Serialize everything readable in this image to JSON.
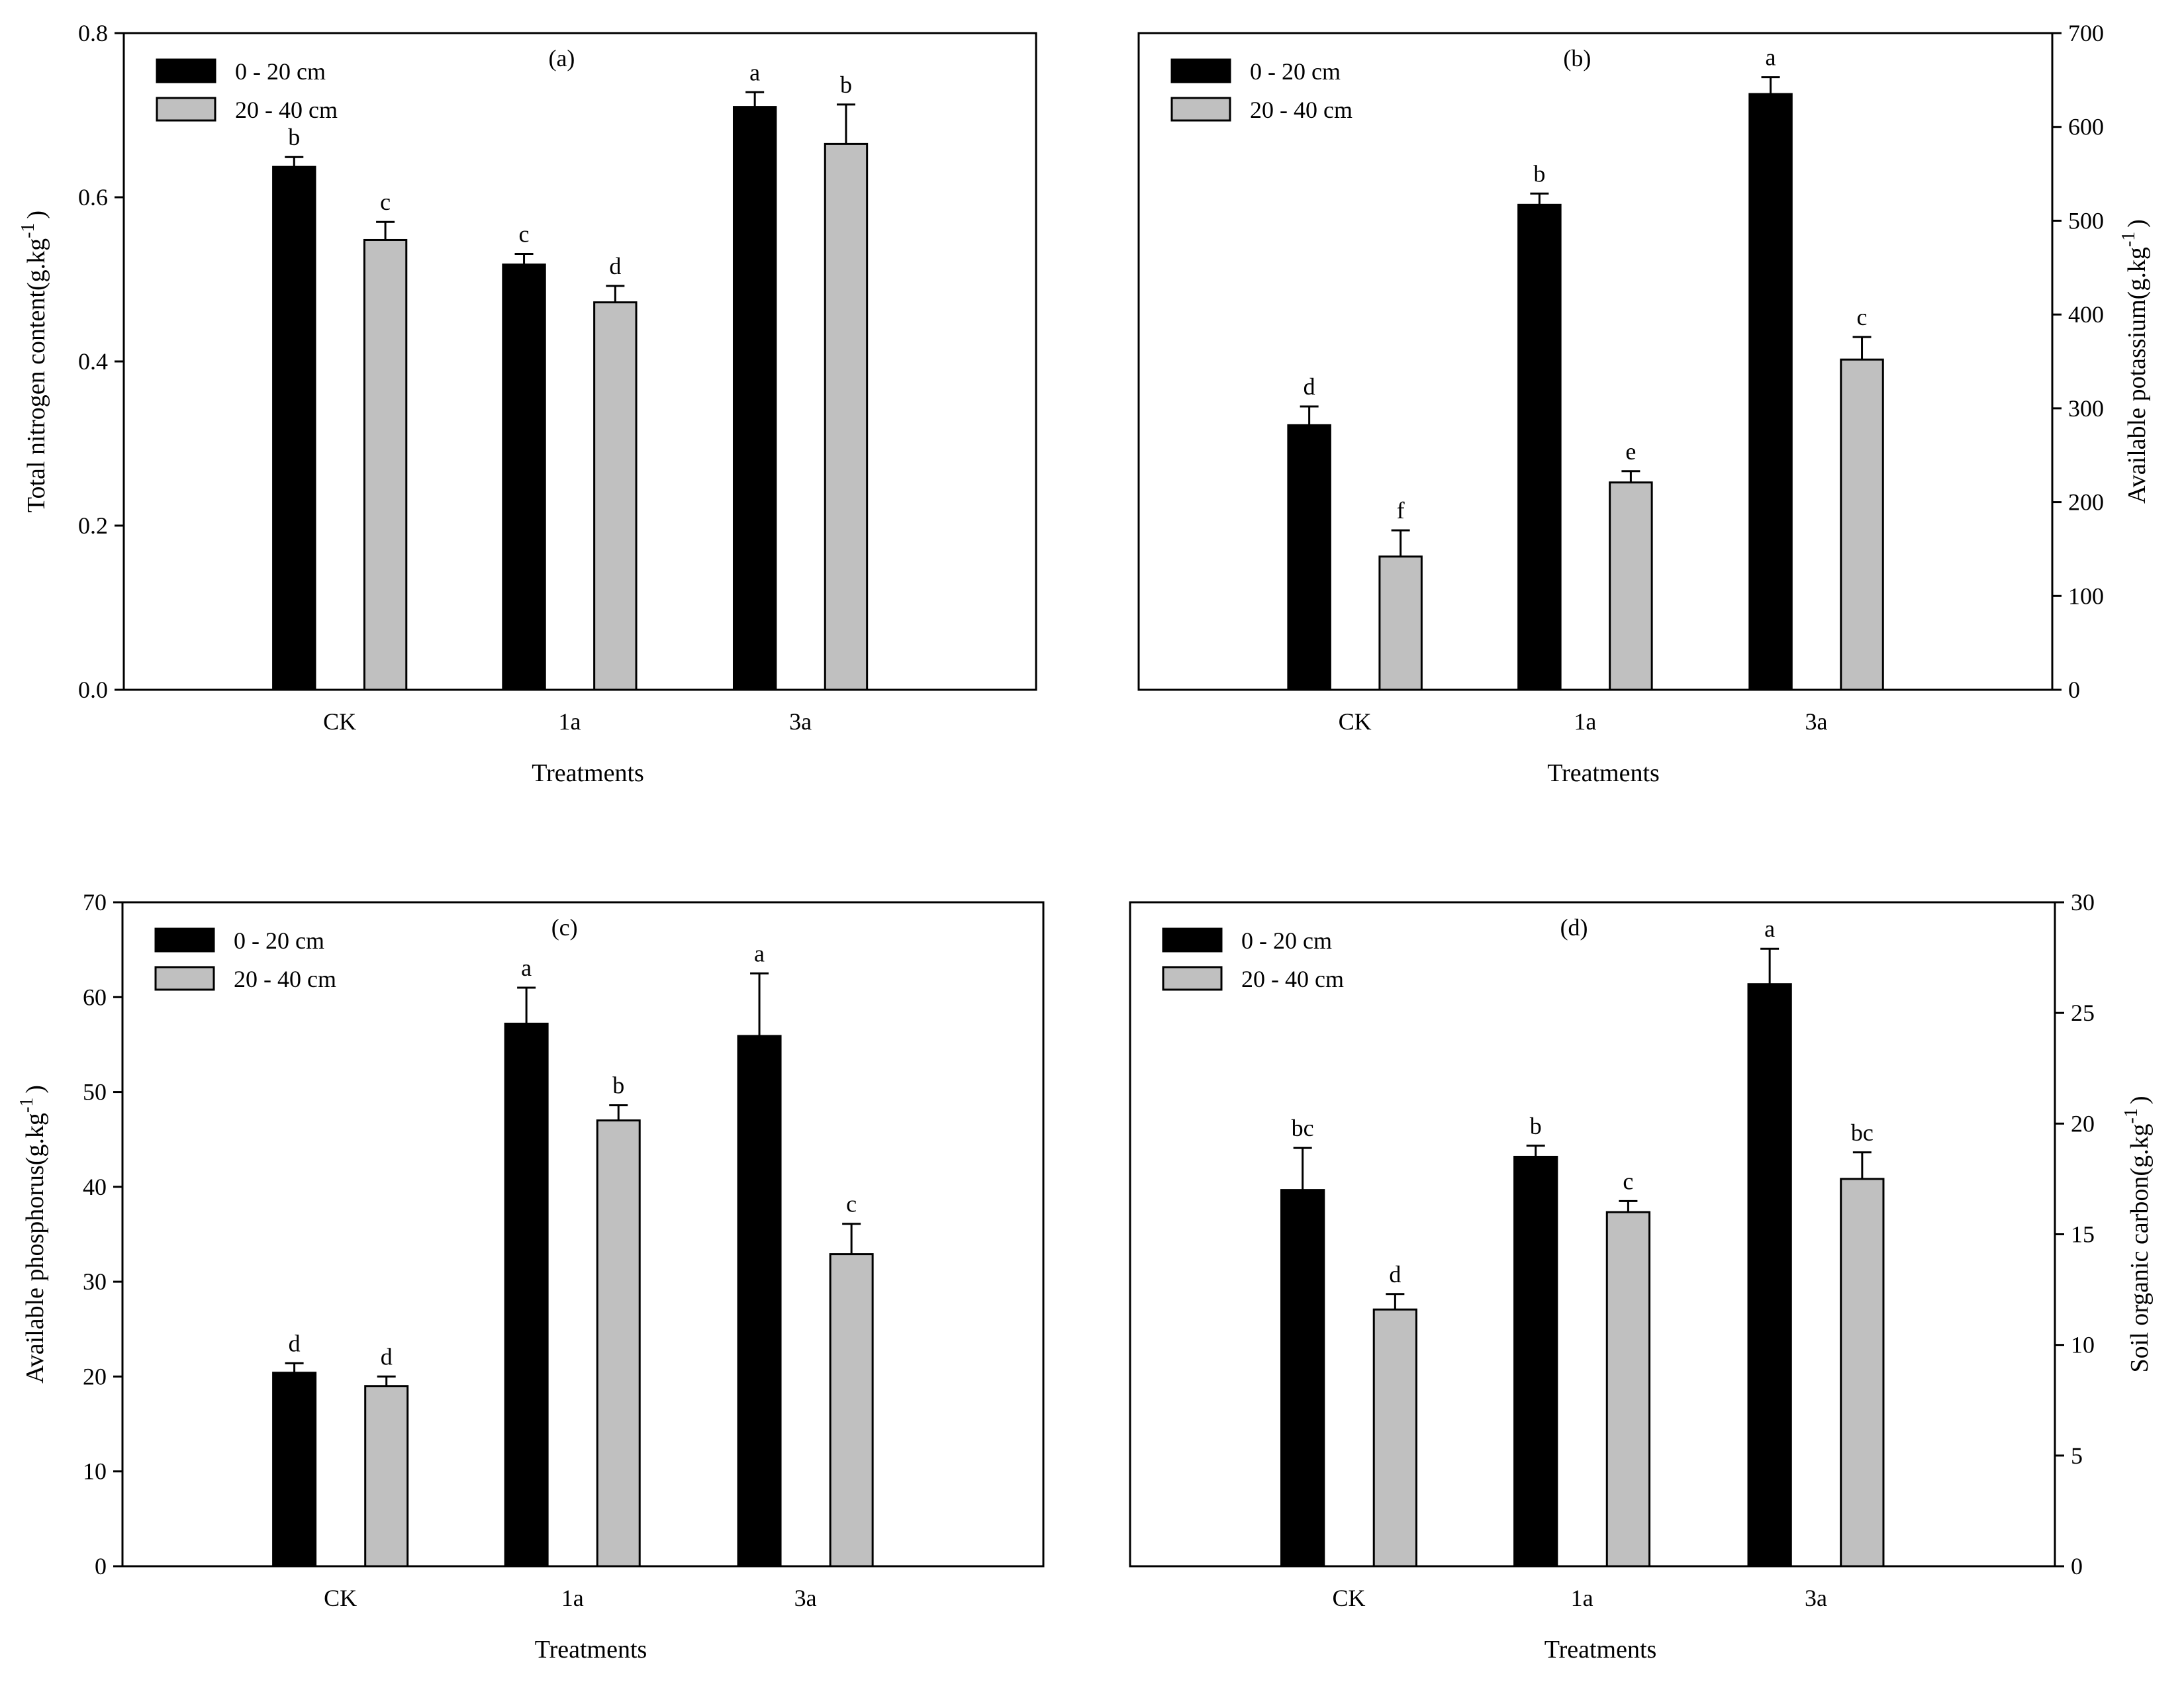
{
  "chart_data": [
    {
      "type": "bar",
      "panel_label": "(a)",
      "categories": [
        "CK",
        "1a",
        "3a"
      ],
      "xlabel": "Treatments",
      "ylabel": "Total nitrogen content(g.kg",
      "ylabel_sup": "-1",
      "ylabel_close": ")",
      "y_axis_side": "left",
      "ylim": [
        0,
        0.8
      ],
      "yticks": [
        0.0,
        0.2,
        0.4,
        0.6,
        0.8
      ],
      "ytick_labels": [
        "0.0",
        "0.2",
        "0.4",
        "0.6",
        "0.8"
      ],
      "legend_position": "top-left",
      "series": [
        {
          "name": "0 - 20 cm",
          "color": "#000000",
          "values": [
            0.637,
            0.518,
            0.71
          ],
          "errors": [
            0.012,
            0.013,
            0.018
          ],
          "letters": [
            "b",
            "c",
            "a"
          ]
        },
        {
          "name": "20 - 40 cm",
          "color": "#c0c0c0",
          "values": [
            0.548,
            0.472,
            0.665
          ],
          "errors": [
            0.022,
            0.02,
            0.048
          ],
          "letters": [
            "c",
            "d",
            "b"
          ]
        }
      ]
    },
    {
      "type": "bar",
      "panel_label": "(b)",
      "categories": [
        "CK",
        "1a",
        "3a"
      ],
      "xlabel": "Treatments",
      "ylabel": "Available potassium(g.kg",
      "ylabel_sup": "-1",
      "ylabel_close": ")",
      "y_axis_side": "right",
      "ylim": [
        0,
        700
      ],
      "yticks": [
        0,
        100,
        200,
        300,
        400,
        500,
        600,
        700
      ],
      "ytick_labels": [
        "0",
        "100",
        "200",
        "300",
        "400",
        "500",
        "600",
        "700"
      ],
      "legend_position": "top-left",
      "series": [
        {
          "name": "0 - 20 cm",
          "color": "#000000",
          "values": [
            282,
            517,
            635
          ],
          "errors": [
            20,
            12,
            18
          ],
          "letters": [
            "d",
            "b",
            "a"
          ]
        },
        {
          "name": "20 - 40 cm",
          "color": "#c0c0c0",
          "values": [
            142,
            221,
            352
          ],
          "errors": [
            28,
            12,
            24
          ],
          "letters": [
            "f",
            "e",
            "c"
          ]
        }
      ]
    },
    {
      "type": "bar",
      "panel_label": "(c)",
      "categories": [
        "CK",
        "1a",
        "3a"
      ],
      "xlabel": "Treatments",
      "ylabel": "Available phosphorus(g.kg",
      "ylabel_sup": "-1",
      "ylabel_close": ")",
      "y_axis_side": "left",
      "ylim": [
        0,
        70
      ],
      "yticks": [
        0,
        10,
        20,
        30,
        40,
        50,
        60,
        70
      ],
      "ytick_labels": [
        "0",
        "10",
        "20",
        "30",
        "40",
        "50",
        "60",
        "70"
      ],
      "legend_position": "top-left",
      "series": [
        {
          "name": "0 - 20 cm",
          "color": "#000000",
          "values": [
            20.4,
            57.2,
            55.9
          ],
          "errors": [
            1.0,
            3.8,
            6.6
          ],
          "letters": [
            "d",
            "a",
            "a"
          ]
        },
        {
          "name": "20 - 40 cm",
          "color": "#c0c0c0",
          "values": [
            19.0,
            47.0,
            32.9
          ],
          "errors": [
            1.0,
            1.6,
            3.2
          ],
          "letters": [
            "d",
            "b",
            "c"
          ]
        }
      ]
    },
    {
      "type": "bar",
      "panel_label": "(d)",
      "categories": [
        "CK",
        "1a",
        "3a"
      ],
      "xlabel": "Treatments",
      "ylabel": "Soil organic carbon(g.kg",
      "ylabel_sup": "-1",
      "ylabel_close": ")",
      "y_axis_side": "right",
      "ylim": [
        0,
        30
      ],
      "yticks": [
        0,
        5,
        10,
        15,
        20,
        25,
        30
      ],
      "ytick_labels": [
        "0",
        "5",
        "10",
        "15",
        "20",
        "25",
        "30"
      ],
      "legend_position": "top-left",
      "series": [
        {
          "name": "0 - 20 cm",
          "color": "#000000",
          "values": [
            17.0,
            18.5,
            26.3
          ],
          "errors": [
            1.9,
            0.5,
            1.6
          ],
          "letters": [
            "bc",
            "b",
            "a"
          ]
        },
        {
          "name": "20 - 40 cm",
          "color": "#c0c0c0",
          "values": [
            11.6,
            16.0,
            17.5
          ],
          "errors": [
            0.7,
            0.5,
            1.2
          ],
          "letters": [
            "d",
            "c",
            "bc"
          ]
        }
      ]
    }
  ]
}
